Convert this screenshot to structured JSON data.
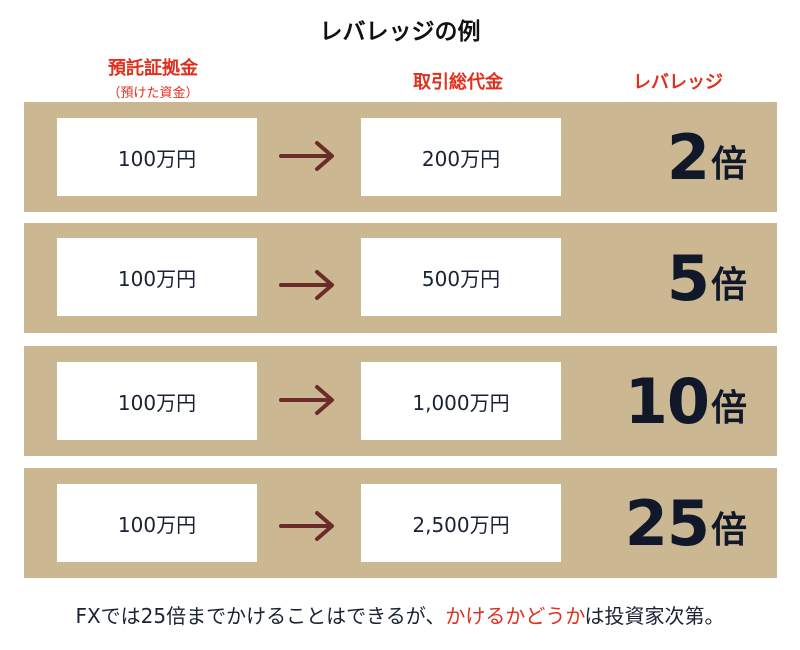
{
  "title": "レバレッジの例",
  "headers": {
    "margin": "預託証拠金",
    "margin_note": "（預けた資金）",
    "total": "取引総代金",
    "leverage": "レバレッジ"
  },
  "rows": [
    {
      "deposit": "100万円",
      "total": "200万円",
      "multiplier": "2",
      "unit": "倍"
    },
    {
      "deposit": "100万円",
      "total": "500万円",
      "multiplier": "5",
      "unit": "倍"
    },
    {
      "deposit": "100万円",
      "total": "1,000万円",
      "multiplier": "10",
      "unit": "倍"
    },
    {
      "deposit": "100万円",
      "total": "2,500万円",
      "multiplier": "25",
      "unit": "倍"
    }
  ],
  "footer": {
    "before": "FXでは25倍までかけることはできるが、",
    "highlight": "かけるかどうか",
    "after": "は投資家次第。"
  },
  "colors": {
    "row_background": "#cbb791",
    "arrow": "#6b2b28",
    "accent_red": "#e0301e",
    "text_dark": "#1b2235"
  },
  "icons": {
    "arrow": "right-arrow-icon"
  }
}
